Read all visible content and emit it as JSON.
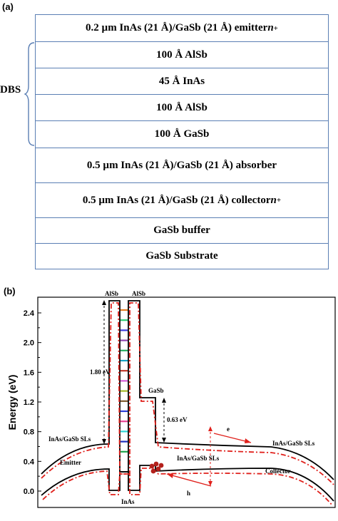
{
  "panel_a": {
    "label": "(a)",
    "dbs_label": "DBS",
    "layers": [
      {
        "text": "0.2 µm InAs (21 Å)/GaSb (21 Å) emitter ",
        "suffix": "n",
        "sup": "+"
      },
      {
        "text": "100 Å AlSb",
        "suffix": "",
        "sup": ""
      },
      {
        "text": "45 Å InAs",
        "suffix": "",
        "sup": ""
      },
      {
        "text": "100 Å AlSb",
        "suffix": "",
        "sup": ""
      },
      {
        "text": "100 Å GaSb",
        "suffix": "",
        "sup": ""
      },
      {
        "text": "0.5 µm InAs (21 Å)/GaSb (21 Å) absorber",
        "suffix": "",
        "sup": ""
      },
      {
        "text": "0.5 µm InAs (21 Å)/GaSb (21 Å) collector ",
        "suffix": "n",
        "sup": "+"
      },
      {
        "text": "GaSb buffer",
        "suffix": "",
        "sup": ""
      },
      {
        "text": "GaSb Substrate",
        "suffix": "",
        "sup": ""
      }
    ],
    "border_color": "#5b7fb4"
  },
  "panel_b": {
    "label": "(b)",
    "ylabel": "Energy (eV)",
    "yticks": [
      "0.0",
      "0.4",
      "0.8",
      "1.2",
      "1.6",
      "2.0",
      "2.4"
    ],
    "annotations": {
      "alsb_left": "AlSb",
      "alsb_right": "AlSb",
      "gasb": "GaSb",
      "inas": "InAs",
      "gap_180": "1.80 eV",
      "gap_063": "0.63 eV",
      "sl_left": "InAs/GaSb SLs",
      "sl_middle": "InAs/GaSb SLs",
      "sl_right": "InAs/GaSb SLs",
      "emitter": "Emitter",
      "collector": "Collector",
      "electron": "e",
      "hole": "h"
    },
    "colors": {
      "band": "#000000",
      "dashed": "#e0201b",
      "arrow": "#e0201b",
      "hole_dot": "#b3201b"
    },
    "level_colors": [
      "#e67e22",
      "#2ecc71",
      "#3b3bdc",
      "#8e44ad",
      "#27ae60",
      "#16a3c4",
      "#c0392b",
      "#d35bd6",
      "#a3b82a",
      "#7f5a2d",
      "#2c3ed8",
      "#e84393",
      "#2dd4d4",
      "#1f2fbd",
      "#1aa34a"
    ]
  }
}
